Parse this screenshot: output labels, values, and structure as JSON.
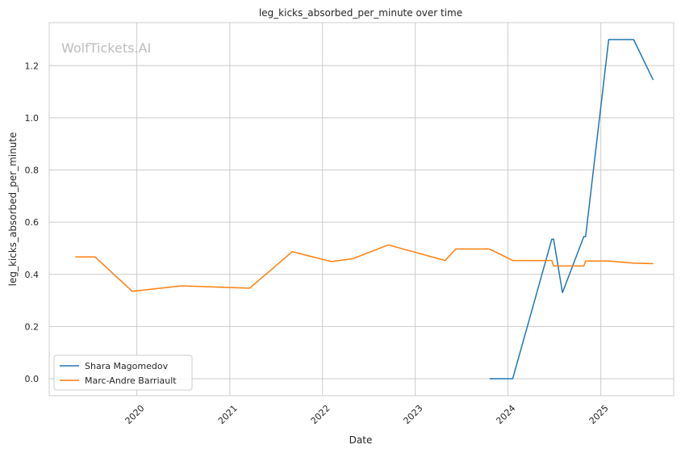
{
  "chart_data": {
    "type": "line",
    "title": "leg_kicks_absorbed_per_minute over time",
    "xlabel": "Date",
    "ylabel": "leg_kicks_absorbed_per_minute",
    "watermark": "WolfTickets.AI",
    "xlim": [
      "2019-01-21",
      "2025-10-15"
    ],
    "ylim": [
      -0.065,
      1.365
    ],
    "x_ticks": [
      "2020",
      "2021",
      "2022",
      "2023",
      "2024",
      "2025"
    ],
    "y_ticks": [
      "0.0",
      "0.2",
      "0.4",
      "0.6",
      "0.8",
      "1.0",
      "1.2"
    ],
    "grid": true,
    "legend_position": "lower-left",
    "series": [
      {
        "name": "Shara Magomedov",
        "color": "#1f77b4",
        "points": [
          [
            "2023-10-21",
            0.0
          ],
          [
            "2024-01-20",
            0.0
          ],
          [
            "2024-06-22",
            0.535
          ],
          [
            "2024-06-29",
            0.535
          ],
          [
            "2024-08-03",
            0.33
          ],
          [
            "2024-10-26",
            0.545
          ],
          [
            "2024-11-02",
            0.545
          ],
          [
            "2025-02-01",
            1.3
          ],
          [
            "2025-05-10",
            1.3
          ],
          [
            "2025-07-26",
            1.145
          ]
        ]
      },
      {
        "name": "Marc-Andre Barriault",
        "color": "#ff7f0e",
        "points": [
          [
            "2019-05-04",
            0.467
          ],
          [
            "2019-07-20",
            0.467
          ],
          [
            "2019-12-14",
            0.335
          ],
          [
            "2020-06-27",
            0.356
          ],
          [
            "2021-03-20",
            0.347
          ],
          [
            "2021-09-04",
            0.487
          ],
          [
            "2022-02-05",
            0.449
          ],
          [
            "2022-04-30",
            0.46
          ],
          [
            "2022-09-17",
            0.513
          ],
          [
            "2023-04-29",
            0.453
          ],
          [
            "2023-06-10",
            0.497
          ],
          [
            "2023-10-21",
            0.497
          ],
          [
            "2024-01-20",
            0.453
          ],
          [
            "2024-06-22",
            0.453
          ],
          [
            "2024-06-29",
            0.432
          ],
          [
            "2024-10-26",
            0.432
          ],
          [
            "2024-11-02",
            0.451
          ],
          [
            "2025-02-01",
            0.451
          ],
          [
            "2025-05-10",
            0.443
          ],
          [
            "2025-07-26",
            0.441
          ]
        ]
      }
    ]
  }
}
